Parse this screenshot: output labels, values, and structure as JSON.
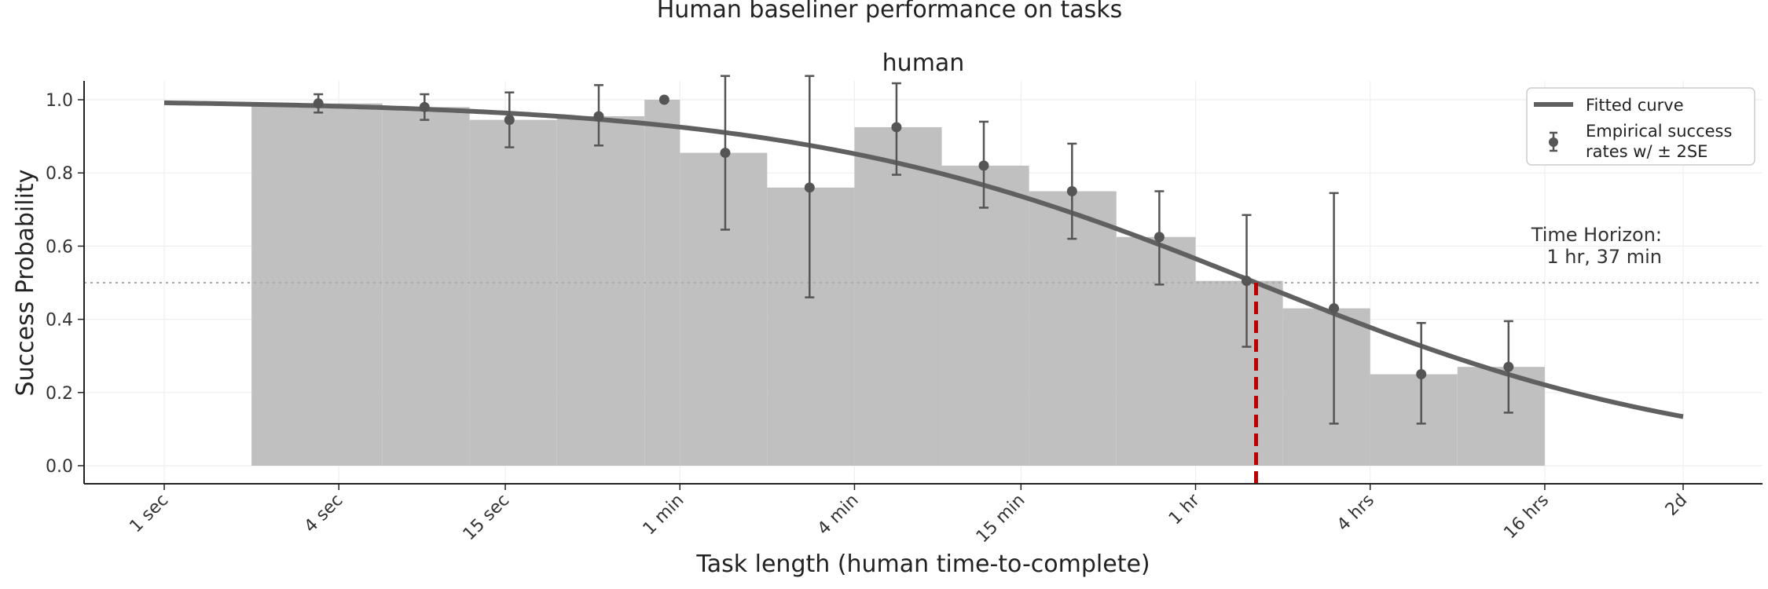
{
  "chart_data": {
    "type": "bar",
    "suptitle": "Human baseliner performance on tasks",
    "title": "human",
    "xlabel": "Task length (human time-to-complete)",
    "ylabel": "Success Probability",
    "x_scale": "log",
    "x_unit": "seconds",
    "xlim": [
      0.5,
      270000
    ],
    "ylim": [
      -0.05,
      1.05
    ],
    "grid": true,
    "legend_position": "top-right",
    "x_ticks": [
      {
        "value": 1,
        "label": "1 sec"
      },
      {
        "value": 4,
        "label": "4 sec"
      },
      {
        "value": 15,
        "label": "15 sec"
      },
      {
        "value": 60,
        "label": "1 min"
      },
      {
        "value": 240,
        "label": "4 min"
      },
      {
        "value": 900,
        "label": "15 min"
      },
      {
        "value": 3600,
        "label": "1 hr"
      },
      {
        "value": 14400,
        "label": "4 hrs"
      },
      {
        "value": 57600,
        "label": "16 hrs"
      },
      {
        "value": 172800,
        "label": "2d"
      }
    ],
    "y_ticks": [
      {
        "value": 0.0,
        "label": "0.0"
      },
      {
        "value": 0.2,
        "label": "0.2"
      },
      {
        "value": 0.4,
        "label": "0.4"
      },
      {
        "value": 0.6,
        "label": "0.6"
      },
      {
        "value": 0.8,
        "label": "0.8"
      },
      {
        "value": 1.0,
        "label": "1.0"
      }
    ],
    "bins": [
      {
        "x0": 2,
        "x1": 5.66,
        "value": 0.99
      },
      {
        "x0": 5.66,
        "x1": 11.3,
        "value": 0.98
      },
      {
        "x0": 11.3,
        "x1": 22.6,
        "value": 0.945
      },
      {
        "x0": 22.6,
        "x1": 45.3,
        "value": 0.955
      },
      {
        "x0": 45.3,
        "x1": 60,
        "value": 1.0
      },
      {
        "x0": 60,
        "x1": 120,
        "value": 0.855
      },
      {
        "x0": 120,
        "x1": 240,
        "value": 0.76
      },
      {
        "x0": 240,
        "x1": 480,
        "value": 0.925
      },
      {
        "x0": 480,
        "x1": 960,
        "value": 0.82
      },
      {
        "x0": 960,
        "x1": 1920,
        "value": 0.75
      },
      {
        "x0": 1920,
        "x1": 3600,
        "value": 0.625
      },
      {
        "x0": 3600,
        "x1": 7200,
        "value": 0.505
      },
      {
        "x0": 7200,
        "x1": 14400,
        "value": 0.43
      },
      {
        "x0": 14400,
        "x1": 28800,
        "value": 0.25
      },
      {
        "x0": 28800,
        "x1": 57600,
        "value": 0.27
      }
    ],
    "points": [
      {
        "x": 3.4,
        "y": 0.99,
        "lo": 0.965,
        "hi": 1.015
      },
      {
        "x": 7.9,
        "y": 0.98,
        "lo": 0.945,
        "hi": 1.015
      },
      {
        "x": 15.5,
        "y": 0.945,
        "lo": 0.87,
        "hi": 1.02
      },
      {
        "x": 31.5,
        "y": 0.955,
        "lo": 0.875,
        "hi": 1.04
      },
      {
        "x": 53,
        "y": 1.0,
        "lo": 1.0,
        "hi": 1.0
      },
      {
        "x": 86,
        "y": 0.855,
        "lo": 0.645,
        "hi": 1.065
      },
      {
        "x": 168,
        "y": 0.76,
        "lo": 0.46,
        "hi": 1.065
      },
      {
        "x": 335,
        "y": 0.925,
        "lo": 0.795,
        "hi": 1.045
      },
      {
        "x": 670,
        "y": 0.82,
        "lo": 0.705,
        "hi": 0.94
      },
      {
        "x": 1350,
        "y": 0.75,
        "lo": 0.62,
        "hi": 0.88
      },
      {
        "x": 2700,
        "y": 0.625,
        "lo": 0.495,
        "hi": 0.75
      },
      {
        "x": 5400,
        "y": 0.505,
        "lo": 0.325,
        "hi": 0.685
      },
      {
        "x": 10800,
        "y": 0.43,
        "lo": 0.115,
        "hi": 0.745
      },
      {
        "x": 21600,
        "y": 0.25,
        "lo": 0.115,
        "hi": 0.39
      },
      {
        "x": 43200,
        "y": 0.27,
        "lo": 0.145,
        "hi": 0.395
      }
    ],
    "fitted_curve": {
      "name": "Fitted curve",
      "x50": 5820,
      "slope": 0.55
    },
    "error_series_name": "Empirical success rates w/ ± 2SE",
    "legend_labels": [
      "Fitted curve",
      "Empirical success",
      "rates w/ ± 2SE"
    ],
    "threshold": 0.5,
    "time_horizon": {
      "x": 5820,
      "label_lines": [
        "Time Horizon:",
        "1 hr, 37 min"
      ]
    },
    "colors": {
      "bars": "#c0c0c0",
      "points": "#555555",
      "curve": "#606060",
      "horizon_line": "#c00000",
      "threshold_line": "#aaaaaa",
      "grid": "#eeeeee"
    }
  }
}
